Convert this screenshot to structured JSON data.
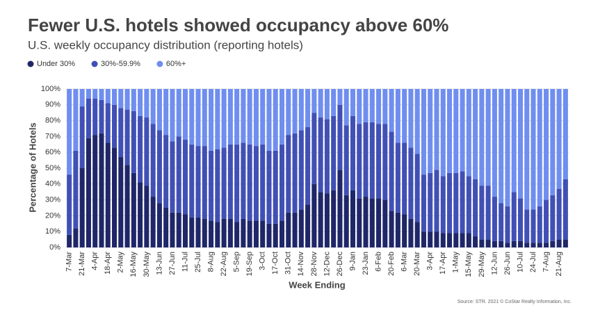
{
  "chart_data": {
    "type": "stacked_bar",
    "title": "Fewer U.S. hotels showed occupancy above 60%",
    "subtitle": "U.S. weekly occupancy distribution (reporting hotels)",
    "y_label": "Percentage of Hotels",
    "x_label": "Week Ending",
    "source": "Source: STR. 2021 © CoStar Realty Information, Inc.",
    "categories": [
      "7-Mar",
      null,
      "21-Mar",
      null,
      "4-Apr",
      null,
      "18-Apr",
      null,
      "2-May",
      null,
      "16-May",
      null,
      "30-May",
      null,
      "13-Jun",
      null,
      "27-Jun",
      null,
      "11-Jul",
      null,
      "25-Jul",
      null,
      "8-Aug",
      null,
      "22-Aug",
      null,
      "5-Sep",
      null,
      "19-Sep",
      null,
      "3-Oct",
      null,
      "17-Oct",
      null,
      "31-Oct",
      null,
      "14-Nov",
      null,
      "28-Nov",
      null,
      "12-Dec",
      null,
      "26-Dec",
      null,
      "9-Jan",
      null,
      "23-Jan",
      null,
      "6-Feb",
      null,
      "20-Feb",
      null,
      "6-Mar",
      null,
      "20-Mar",
      null,
      "3-Apr",
      null,
      "17-Apr",
      null,
      "1-May",
      null,
      "15-May",
      null,
      "29-May",
      null,
      "12-Jun",
      null,
      "26-Jun",
      null,
      "10-Jul",
      null,
      "24-Jul",
      null,
      "7-Aug",
      null,
      "21-Aug",
      null
    ],
    "series": [
      {
        "name": "Under 30%",
        "color": "#1f2769",
        "values": [
          8,
          12,
          50,
          69,
          71,
          72,
          66,
          63,
          57,
          52,
          47,
          41,
          39,
          32,
          28,
          25,
          22,
          22,
          21,
          19,
          19,
          18,
          17,
          16,
          18,
          18,
          16,
          18,
          17,
          17,
          17,
          15,
          15,
          17,
          22,
          22,
          24,
          27,
          40,
          35,
          34,
          36,
          49,
          33,
          36,
          31,
          32,
          31,
          31,
          30,
          23,
          22,
          21,
          18,
          16,
          10,
          10,
          10,
          9,
          9,
          9,
          9,
          9,
          7,
          5,
          5,
          4,
          4,
          3,
          4,
          4,
          3,
          3,
          3,
          3,
          4,
          5,
          5
        ]
      },
      {
        "name": "30%-59.9%",
        "color": "#4150b5",
        "values": [
          38,
          49,
          39,
          25,
          23,
          21,
          25,
          27,
          31,
          35,
          39,
          42,
          43,
          46,
          46,
          46,
          45,
          48,
          47,
          46,
          45,
          46,
          44,
          46,
          45,
          47,
          49,
          48,
          48,
          47,
          48,
          46,
          46,
          48,
          49,
          50,
          50,
          49,
          45,
          47,
          47,
          47,
          41,
          44,
          47,
          47,
          47,
          48,
          47,
          48,
          50,
          44,
          45,
          45,
          43,
          36,
          37,
          39,
          36,
          38,
          38,
          39,
          36,
          36,
          34,
          34,
          28,
          24,
          23,
          31,
          27,
          21,
          21,
          23,
          27,
          29,
          32,
          38
        ]
      },
      {
        "name": "60%+",
        "color": "#6f8ef0",
        "values": [
          54,
          39,
          11,
          6,
          6,
          7,
          9,
          10,
          12,
          13,
          14,
          17,
          18,
          22,
          26,
          29,
          33,
          30,
          32,
          35,
          36,
          36,
          39,
          38,
          37,
          35,
          35,
          34,
          35,
          36,
          35,
          39,
          39,
          35,
          29,
          28,
          26,
          24,
          15,
          18,
          19,
          17,
          10,
          23,
          17,
          22,
          21,
          21,
          22,
          22,
          27,
          34,
          34,
          37,
          41,
          54,
          53,
          51,
          55,
          53,
          53,
          52,
          55,
          57,
          61,
          61,
          68,
          72,
          74,
          65,
          69,
          76,
          76,
          74,
          70,
          67,
          63,
          57
        ]
      }
    ],
    "ylim": [
      0,
      100
    ],
    "yticks": [
      {
        "value": 0,
        "label": "0%"
      },
      {
        "value": 10,
        "label": "10%"
      },
      {
        "value": 20,
        "label": "20%"
      },
      {
        "value": 30,
        "label": "30%"
      },
      {
        "value": 40,
        "label": "40%"
      },
      {
        "value": 50,
        "label": "50%"
      },
      {
        "value": 60,
        "label": "60%"
      },
      {
        "value": 70,
        "label": "70%"
      },
      {
        "value": 80,
        "label": "80%"
      },
      {
        "value": 90,
        "label": "90%"
      },
      {
        "value": 100,
        "label": "100%"
      }
    ],
    "grid": true
  }
}
